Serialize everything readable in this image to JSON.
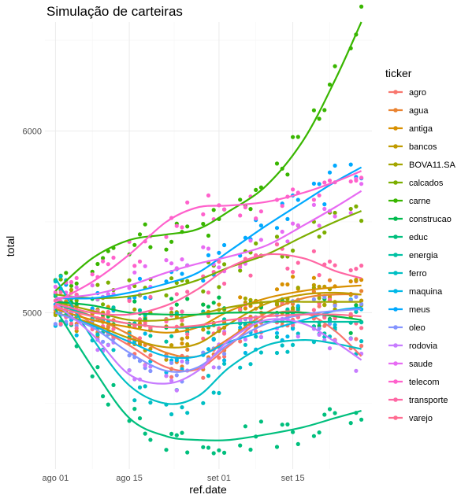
{
  "chart_data": {
    "type": "scatter",
    "title": "Simulação de carteiras",
    "xlabel": "ref.date",
    "ylabel": "total",
    "x_ticks": [
      {
        "label": "ago 01",
        "day": 0
      },
      {
        "label": "ago 15",
        "day": 14
      },
      {
        "label": "set 01",
        "day": 31
      },
      {
        "label": "set 15",
        "day": 45
      }
    ],
    "y_ticks": [
      5000,
      6000
    ],
    "xlim_days": [
      -2,
      60
    ],
    "ylim": [
      4140,
      6600
    ],
    "legend_title": "ticker",
    "legend_position": "right",
    "grid": true,
    "series": [
      {
        "name": "agro",
        "color": "#F8766D",
        "trend": [
          [
            0,
            5080
          ],
          [
            7,
            4940
          ],
          [
            14,
            4820
          ],
          [
            21,
            4700
          ],
          [
            27,
            4690
          ],
          [
            33,
            4820
          ],
          [
            40,
            4980
          ],
          [
            47,
            5000
          ],
          [
            53,
            4900
          ],
          [
            58,
            4760
          ]
        ]
      },
      {
        "name": "agua",
        "color": "#EA8331",
        "trend": [
          [
            0,
            5050
          ],
          [
            7,
            4980
          ],
          [
            14,
            4880
          ],
          [
            21,
            4780
          ],
          [
            27,
            4760
          ],
          [
            33,
            4860
          ],
          [
            40,
            5000
          ],
          [
            47,
            5080
          ],
          [
            53,
            5100
          ],
          [
            58,
            5100
          ]
        ]
      },
      {
        "name": "antiga",
        "color": "#D89000",
        "trend": [
          [
            0,
            5020
          ],
          [
            7,
            4960
          ],
          [
            14,
            4920
          ],
          [
            21,
            4890
          ],
          [
            27,
            4920
          ],
          [
            33,
            5010
          ],
          [
            40,
            5080
          ],
          [
            47,
            5120
          ],
          [
            53,
            5140
          ],
          [
            58,
            5150
          ]
        ]
      },
      {
        "name": "bancos",
        "color": "#C09B00",
        "trend": [
          [
            0,
            5000
          ],
          [
            7,
            4940
          ],
          [
            14,
            4860
          ],
          [
            21,
            4810
          ],
          [
            27,
            4830
          ],
          [
            33,
            4940
          ],
          [
            40,
            5050
          ],
          [
            47,
            5100
          ],
          [
            53,
            5110
          ],
          [
            58,
            5100
          ]
        ]
      },
      {
        "name": "BOVA11.SA",
        "color": "#A3A500",
        "trend": [
          [
            0,
            5060
          ],
          [
            7,
            5010
          ],
          [
            14,
            4960
          ],
          [
            21,
            4960
          ],
          [
            27,
            4990
          ],
          [
            33,
            5030
          ],
          [
            40,
            5060
          ],
          [
            47,
            5060
          ],
          [
            53,
            5060
          ],
          [
            58,
            5060
          ]
        ]
      },
      {
        "name": "calcados",
        "color": "#7CAE00",
        "trend": [
          [
            0,
            5100
          ],
          [
            7,
            5080
          ],
          [
            14,
            5090
          ],
          [
            21,
            5130
          ],
          [
            27,
            5180
          ],
          [
            33,
            5250
          ],
          [
            40,
            5320
          ],
          [
            47,
            5420
          ],
          [
            53,
            5500
          ],
          [
            58,
            5560
          ]
        ]
      },
      {
        "name": "carne",
        "color": "#39B600",
        "trend": [
          [
            0,
            5120
          ],
          [
            7,
            5300
          ],
          [
            14,
            5400
          ],
          [
            21,
            5430
          ],
          [
            27,
            5460
          ],
          [
            33,
            5560
          ],
          [
            40,
            5700
          ],
          [
            47,
            5950
          ],
          [
            53,
            6280
          ],
          [
            58,
            6600
          ]
        ]
      },
      {
        "name": "construcao",
        "color": "#00BB4E",
        "trend": [
          [
            0,
            5060
          ],
          [
            7,
            5040
          ],
          [
            14,
            5000
          ],
          [
            21,
            4990
          ],
          [
            27,
            4990
          ],
          [
            33,
            5000
          ],
          [
            40,
            5000
          ],
          [
            47,
            5000
          ],
          [
            53,
            4980
          ],
          [
            58,
            4960
          ]
        ]
      },
      {
        "name": "educ",
        "color": "#00BF7D",
        "trend": [
          [
            0,
            5020
          ],
          [
            7,
            4700
          ],
          [
            14,
            4420
          ],
          [
            21,
            4320
          ],
          [
            27,
            4300
          ],
          [
            33,
            4300
          ],
          [
            40,
            4330
          ],
          [
            47,
            4370
          ],
          [
            53,
            4420
          ],
          [
            58,
            4460
          ]
        ]
      },
      {
        "name": "energia",
        "color": "#00C1A3",
        "trend": [
          [
            0,
            5050
          ],
          [
            7,
            4980
          ],
          [
            14,
            4940
          ],
          [
            21,
            4920
          ],
          [
            27,
            4920
          ],
          [
            33,
            4940
          ],
          [
            40,
            4950
          ],
          [
            47,
            4950
          ],
          [
            53,
            4950
          ],
          [
            58,
            4950
          ]
        ]
      },
      {
        "name": "ferro",
        "color": "#00BFC4",
        "trend": [
          [
            0,
            5190
          ],
          [
            7,
            4860
          ],
          [
            14,
            4600
          ],
          [
            21,
            4500
          ],
          [
            27,
            4540
          ],
          [
            33,
            4700
          ],
          [
            40,
            4820
          ],
          [
            47,
            4850
          ],
          [
            53,
            4830
          ],
          [
            58,
            4800
          ]
        ]
      },
      {
        "name": "maquina",
        "color": "#00B8E7",
        "trend": [
          [
            0,
            5000
          ],
          [
            7,
            4930
          ],
          [
            14,
            4840
          ],
          [
            21,
            4760
          ],
          [
            27,
            4760
          ],
          [
            33,
            4840
          ],
          [
            40,
            4900
          ],
          [
            47,
            4960
          ],
          [
            53,
            5010
          ],
          [
            58,
            5030
          ]
        ]
      },
      {
        "name": "meus",
        "color": "#00A9FF",
        "trend": [
          [
            0,
            5080
          ],
          [
            7,
            5080
          ],
          [
            14,
            5110
          ],
          [
            21,
            5160
          ],
          [
            27,
            5220
          ],
          [
            33,
            5340
          ],
          [
            40,
            5480
          ],
          [
            47,
            5610
          ],
          [
            53,
            5720
          ],
          [
            58,
            5800
          ]
        ]
      },
      {
        "name": "oleo",
        "color": "#8494FF",
        "trend": [
          [
            0,
            5000
          ],
          [
            7,
            4920
          ],
          [
            14,
            4780
          ],
          [
            21,
            4680
          ],
          [
            27,
            4700
          ],
          [
            33,
            4830
          ],
          [
            40,
            4940
          ],
          [
            47,
            4990
          ],
          [
            53,
            5010
          ],
          [
            58,
            5020
          ]
        ]
      },
      {
        "name": "rodovia",
        "color": "#C77CFF",
        "trend": [
          [
            0,
            5050
          ],
          [
            7,
            4880
          ],
          [
            14,
            4660
          ],
          [
            21,
            4610
          ],
          [
            27,
            4680
          ],
          [
            33,
            4850
          ],
          [
            40,
            4960
          ],
          [
            47,
            4940
          ],
          [
            53,
            4840
          ],
          [
            58,
            4740
          ]
        ]
      },
      {
        "name": "saude",
        "color": "#E76BF3",
        "trend": [
          [
            0,
            5080
          ],
          [
            7,
            5100
          ],
          [
            14,
            5150
          ],
          [
            21,
            5220
          ],
          [
            27,
            5270
          ],
          [
            33,
            5310
          ],
          [
            40,
            5370
          ],
          [
            47,
            5480
          ],
          [
            53,
            5580
          ],
          [
            58,
            5670
          ]
        ]
      },
      {
        "name": "telecom",
        "color": "#FF61CC",
        "trend": [
          [
            0,
            5060
          ],
          [
            7,
            5170
          ],
          [
            14,
            5320
          ],
          [
            21,
            5500
          ],
          [
            27,
            5580
          ],
          [
            33,
            5590
          ],
          [
            40,
            5610
          ],
          [
            47,
            5660
          ],
          [
            53,
            5720
          ],
          [
            58,
            5780
          ]
        ]
      },
      {
        "name": "transporte",
        "color": "#FF67A4",
        "trend": [
          [
            0,
            5050
          ],
          [
            7,
            5000
          ],
          [
            14,
            4990
          ],
          [
            21,
            5040
          ],
          [
            27,
            5130
          ],
          [
            33,
            5250
          ],
          [
            40,
            5320
          ],
          [
            47,
            5300
          ],
          [
            53,
            5230
          ],
          [
            58,
            5190
          ]
        ]
      },
      {
        "name": "varejo",
        "color": "#FF6C91",
        "trend": [
          [
            0,
            5030
          ],
          [
            7,
            4980
          ],
          [
            14,
            4940
          ],
          [
            21,
            4920
          ],
          [
            27,
            4930
          ],
          [
            33,
            4960
          ],
          [
            40,
            4980
          ],
          [
            47,
            4990
          ],
          [
            53,
            4990
          ],
          [
            58,
            4980
          ]
        ]
      }
    ]
  }
}
